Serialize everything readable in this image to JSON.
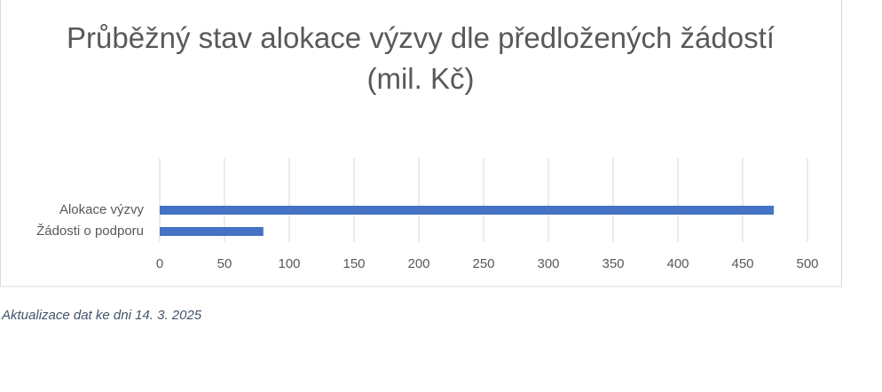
{
  "chart_data": {
    "type": "hbar",
    "title": "Průběžný stav alokace výzvy dle předložených žádostí (mil. Kč)",
    "categories": [
      "Alokace výzvy",
      "Žádosti o podporu"
    ],
    "values": [
      474,
      80
    ],
    "color": "#4472c4",
    "xlim": [
      0,
      500
    ],
    "xticks": [
      0,
      50,
      100,
      150,
      200,
      250,
      300,
      350,
      400,
      450,
      500
    ],
    "grid": true,
    "annotation": "Aktualizace dat ke dni 14. 3. 2025"
  }
}
